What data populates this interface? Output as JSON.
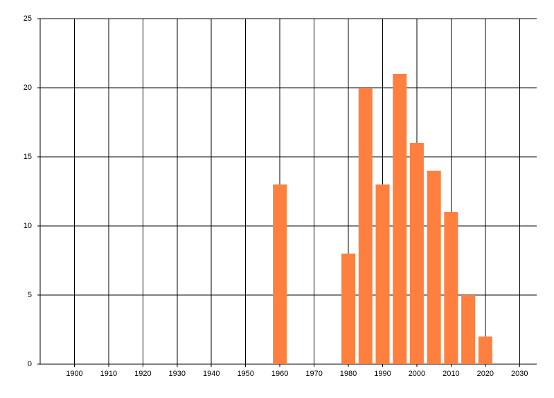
{
  "chart_data": {
    "type": "bar",
    "x": [
      1960,
      1980,
      1985,
      1990,
      1995,
      2000,
      2005,
      2010,
      2015,
      2020
    ],
    "values": [
      13,
      8,
      20,
      13,
      21,
      16,
      14,
      11,
      5,
      2
    ],
    "color": "#ff7f3f",
    "xlim": [
      1890,
      2035
    ],
    "xticks": [
      1900,
      1910,
      1920,
      1930,
      1940,
      1950,
      1960,
      1970,
      1980,
      1990,
      2000,
      2010,
      2020,
      2030
    ],
    "ylim": [
      0,
      25
    ],
    "yticks": [
      0,
      5,
      10,
      15,
      20,
      25
    ],
    "grid": true
  }
}
